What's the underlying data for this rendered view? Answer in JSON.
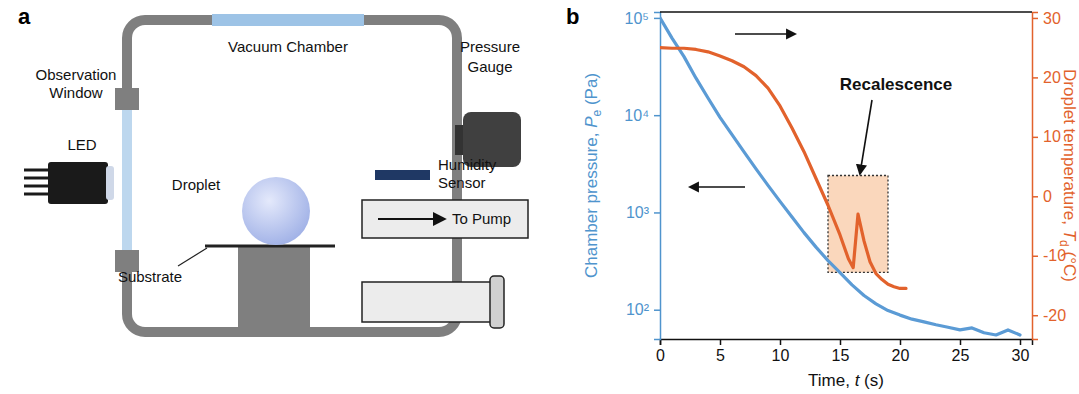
{
  "panel_labels": [
    "a",
    "b"
  ],
  "diagram": {
    "observation_window": [
      "Observation",
      "Window"
    ],
    "led": "LED",
    "vacuum_chamber": "Vacuum Chamber",
    "pressure_gauge": [
      "Pressure",
      "Gauge"
    ],
    "humidity_sensor": [
      "Humidity",
      "Sensor"
    ],
    "to_pump": "To Pump",
    "droplet": "Droplet",
    "substrate": "Substrate"
  },
  "chart_data": {
    "type": "line",
    "xlabel": [
      "Time, ",
      "t",
      " (s)"
    ],
    "ylabel": [
      "Chamber pressure, ",
      "P",
      "e",
      " (Pa)"
    ],
    "y2label": [
      "Droplet temperature, ",
      "T",
      "d",
      " (°C)"
    ],
    "log": "y",
    "xlim": [
      0,
      31
    ],
    "xticks": [
      0,
      5,
      10,
      15,
      20,
      25,
      30
    ],
    "ylim": [
      50,
      115000
    ],
    "yticks": [
      {
        "value": 100,
        "label": "10²"
      },
      {
        "value": 1000,
        "label": "10³"
      },
      {
        "value": 10000,
        "label": "10⁴"
      },
      {
        "value": 100000,
        "label": "10⁵"
      }
    ],
    "y2lim": [
      -24,
      31
    ],
    "y2ticks": [
      -20,
      -10,
      0,
      10,
      20,
      30
    ],
    "series": [
      {
        "color": "#5b9bd5",
        "x": [
          0,
          1,
          2,
          3,
          4,
          5,
          6,
          7,
          8,
          9,
          10,
          11,
          12,
          13,
          14,
          15,
          16,
          17,
          18,
          19,
          20,
          21,
          22,
          23,
          24,
          25,
          26,
          27,
          28,
          29,
          30
        ],
        "values": [
          100000,
          62000,
          40000,
          24000,
          15000,
          9500,
          6300,
          4200,
          2800,
          1900,
          1300,
          900,
          620,
          440,
          320,
          240,
          180,
          140,
          115,
          98,
          88,
          80,
          75,
          70,
          66,
          62,
          65,
          58,
          55,
          62,
          55
        ]
      },
      {
        "color": "#e2622c",
        "axis": "y2",
        "x": [
          0,
          1,
          2,
          3,
          4,
          5,
          6,
          7,
          8,
          9,
          10,
          11,
          12,
          13,
          14,
          15,
          15.7,
          16.1,
          16.5,
          17.0,
          17.5,
          18.0,
          18.5,
          19,
          19.5,
          20,
          20.5
        ],
        "values": [
          25,
          24.9,
          24.9,
          24.7,
          24.3,
          23.6,
          22.8,
          21.8,
          20.3,
          18.2,
          15.2,
          11.5,
          7.5,
          3,
          -1.5,
          -6.5,
          -10.5,
          -12,
          -3,
          -7.5,
          -11,
          -13,
          -14,
          -14.8,
          -15.2,
          -15.5,
          -15.5
        ]
      }
    ],
    "annotations": [
      {
        "text": "Recalescence",
        "axis": "y2",
        "x": [
          14.0,
          19.0
        ],
        "y": [
          -12.8,
          3.5
        ]
      }
    ]
  }
}
